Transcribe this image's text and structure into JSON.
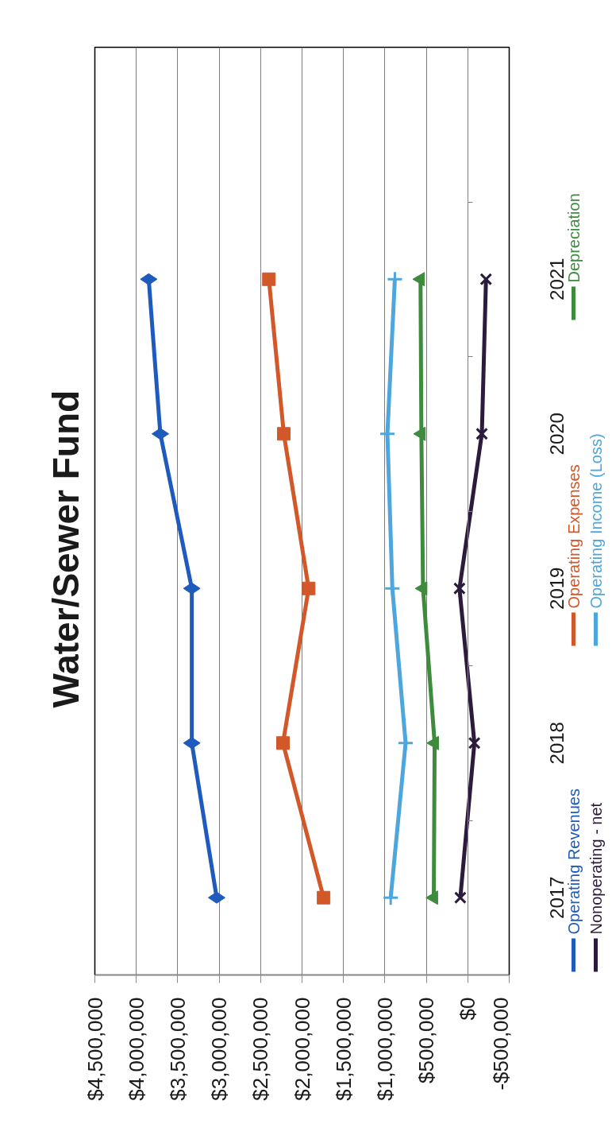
{
  "chart_data": {
    "type": "line",
    "title": "Water/Sewer Fund",
    "orientation": "horizontal",
    "categories": [
      null,
      "2021",
      "2020",
      "2019",
      "2018",
      "2017"
    ],
    "series": [
      {
        "name": "Operating Revenues",
        "color": "#1e5bbd",
        "marker": "diamond",
        "values": [
          null,
          3850000,
          3710000,
          3330000,
          3330000,
          3030000
        ]
      },
      {
        "name": "Operating Expenses",
        "color": "#d2582a",
        "marker": "square",
        "values": [
          null,
          2400000,
          2220000,
          1920000,
          2230000,
          1740000
        ]
      },
      {
        "name": "Depreciation",
        "color": "#3e8b3e",
        "marker": "triangle",
        "values": [
          null,
          570000,
          560000,
          540000,
          400000,
          410000
        ]
      },
      {
        "name": "Nonoperating - net",
        "color": "#2b1b3d",
        "marker": "x",
        "values": [
          null,
          -220000,
          -170000,
          100000,
          -80000,
          90000
        ]
      },
      {
        "name": "Operating Income (Loss)",
        "color": "#4ea6dc",
        "marker": "cross",
        "values": [
          null,
          880000,
          970000,
          910000,
          750000,
          930000
        ]
      }
    ],
    "xlim": [
      4500000,
      -500000
    ],
    "xticks": [
      {
        "value": 4500000,
        "label": "$4,500,000"
      },
      {
        "value": 4000000,
        "label": "$4,000,000"
      },
      {
        "value": 3500000,
        "label": "$3,500,000"
      },
      {
        "value": 3000000,
        "label": "$3,000,000"
      },
      {
        "value": 2500000,
        "label": "$2,500,000"
      },
      {
        "value": 2000000,
        "label": "$2,000,000"
      },
      {
        "value": 1500000,
        "label": "$1,500,000"
      },
      {
        "value": 1000000,
        "label": "$1,000,000"
      },
      {
        "value": 500000,
        "label": "$500,000"
      },
      {
        "value": 0,
        "label": "$0"
      },
      {
        "value": -500000,
        "label": "-$500,000"
      }
    ],
    "grid": "x",
    "legend": "right",
    "line_style": "solid"
  }
}
